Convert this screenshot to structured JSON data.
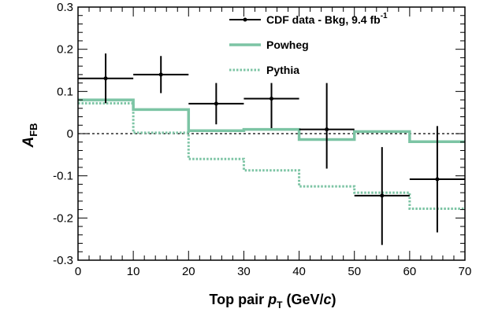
{
  "chart_data": {
    "type": "line",
    "xlabel": {
      "main": "Top pair ",
      "var": "p",
      "sub": "T",
      "unit": " (GeV/",
      "unit_c": "c",
      "unit_end": ")"
    },
    "ylabel": {
      "main": "A",
      "sub": "FB"
    },
    "xlim": [
      0,
      70
    ],
    "ylim": [
      -0.3,
      0.3
    ],
    "xticks": [
      0,
      10,
      20,
      30,
      40,
      50,
      60,
      70
    ],
    "xtick_labels": [
      "0",
      "10",
      "20",
      "30",
      "40",
      "50",
      "60",
      "70"
    ],
    "yticks": [
      -0.3,
      -0.2,
      -0.1,
      0,
      0.1,
      0.2,
      0.3
    ],
    "ytick_labels": [
      "-0.3",
      "-0.2",
      "-0.1",
      "0",
      "0.1",
      "0.2",
      "0.3"
    ],
    "reference_line": {
      "y": 0,
      "style": "dashed"
    },
    "legend": {
      "position": "top-right",
      "entries": [
        {
          "text": "CDF data - Bkg, 9.4  fb",
          "sup": "-1",
          "marker": "point-errorbar",
          "color": "#000000"
        },
        {
          "text": "Powheg",
          "marker": "solid-line",
          "color": "#7cc4a4"
        },
        {
          "text": "Pythia",
          "marker": "dotted-line",
          "color": "#7cc4a4"
        }
      ]
    },
    "series": [
      {
        "name": "CDF data - Bkg, 9.4 fb-1",
        "kind": "points",
        "color": "#000000",
        "x": [
          5,
          15,
          25,
          35,
          45,
          55,
          65
        ],
        "x_err": [
          5,
          5,
          5,
          5,
          5,
          5,
          5
        ],
        "y": [
          0.131,
          0.14,
          0.071,
          0.083,
          0.01,
          -0.147,
          -0.108
        ],
        "y_err_low": [
          0.059,
          0.044,
          0.049,
          0.07,
          0.093,
          0.117,
          0.126
        ],
        "y_err_high": [
          0.059,
          0.044,
          0.049,
          0.037,
          0.11,
          0.115,
          0.126
        ]
      },
      {
        "name": "Powheg",
        "kind": "step",
        "color": "#7cc4a4",
        "style": "solid",
        "bin_edges": [
          0,
          10,
          20,
          30,
          40,
          50,
          60,
          70
        ],
        "values": [
          0.08,
          0.057,
          0.007,
          0.01,
          -0.014,
          0.005,
          -0.019
        ]
      },
      {
        "name": "Pythia",
        "kind": "step",
        "color": "#7cc4a4",
        "style": "dotted",
        "bin_edges": [
          0,
          10,
          20,
          30,
          40,
          50,
          60,
          70
        ],
        "values": [
          0.072,
          0.002,
          -0.06,
          -0.087,
          -0.125,
          -0.14,
          -0.178
        ]
      }
    ]
  }
}
